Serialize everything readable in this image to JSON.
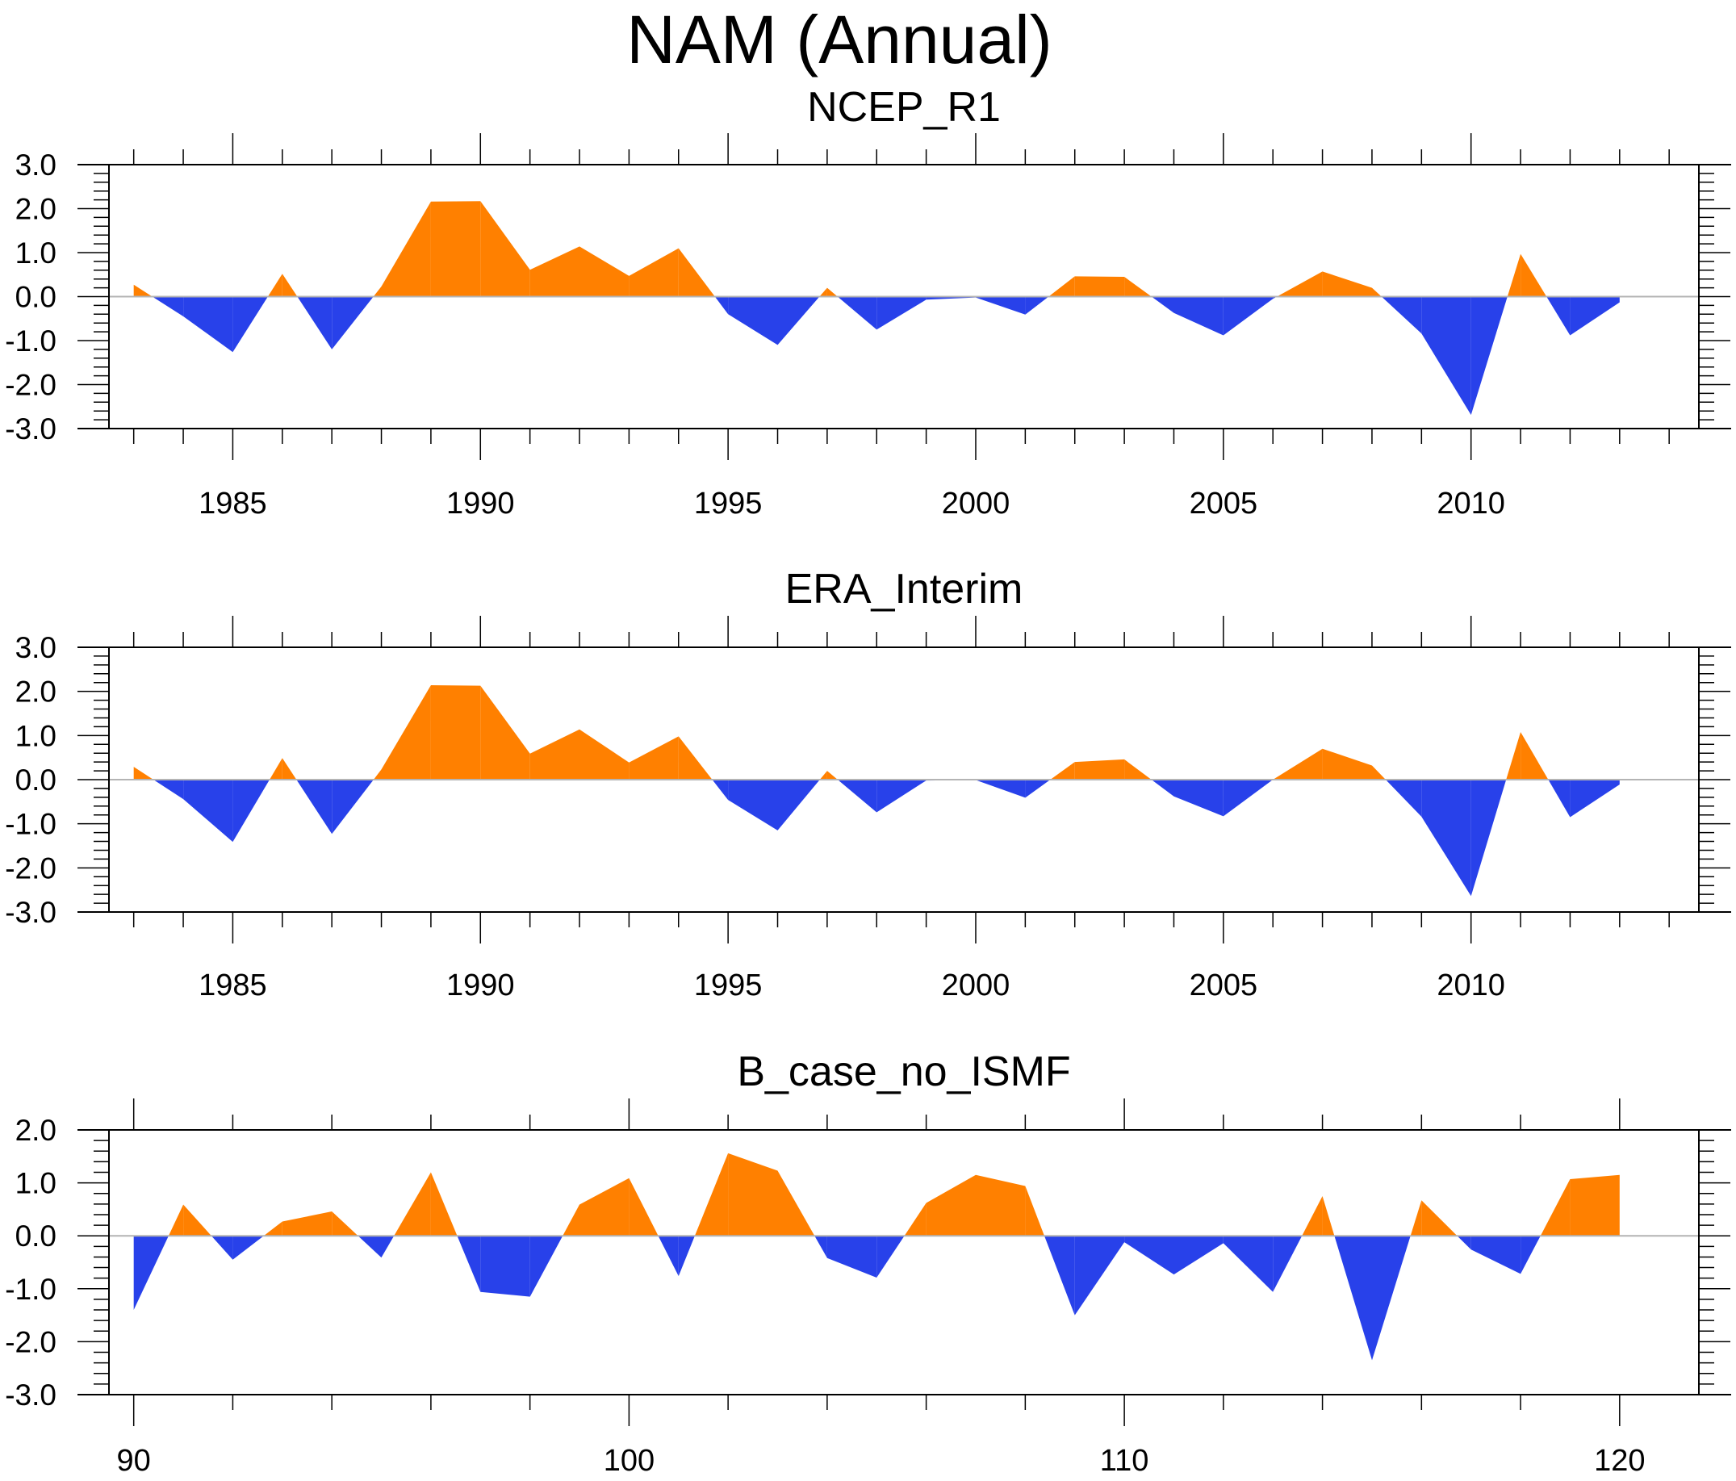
{
  "title": "NAM (Annual)",
  "colors": {
    "positive_fill": "#ff8000",
    "negative_fill": "#2841ea",
    "zero_line": "#b4b4b4",
    "axis": "#000000"
  },
  "chart_data": [
    {
      "type": "area",
      "title": "NCEP_R1",
      "xlabel": "",
      "ylabel": "",
      "xlim": [
        1982.5,
        2014.6
      ],
      "ylim": [
        -3.0,
        3.0
      ],
      "grid": false,
      "legend": "none",
      "x_major_ticks": [
        1985,
        1990,
        1995,
        2000,
        2005,
        2010
      ],
      "x_tick_labels": [
        "1985",
        "1990",
        "1995",
        "2000",
        "2005",
        "2010"
      ],
      "x_minor_ticks": [
        1983,
        1984,
        1985,
        1986,
        1987,
        1988,
        1989,
        1990,
        1991,
        1992,
        1993,
        1994,
        1995,
        1996,
        1997,
        1998,
        1999,
        2000,
        2001,
        2002,
        2003,
        2004,
        2005,
        2006,
        2007,
        2008,
        2009,
        2010,
        2011,
        2012,
        2013,
        2014
      ],
      "y_major_ticks": [
        3.0,
        2.0,
        1.0,
        0.0,
        -1.0,
        -2.0,
        -3.0
      ],
      "y_tick_labels": [
        "3.0",
        "2.0",
        "1.0",
        "0.0",
        "-1.0",
        "-2.0",
        "-3.0"
      ],
      "y_minor_step": 0.2,
      "reference_line": 0.0,
      "x": [
        1983,
        1984,
        1985,
        1986,
        1987,
        1988,
        1989,
        1990,
        1991,
        1992,
        1993,
        1994,
        1995,
        1996,
        1997,
        1998,
        1999,
        2000,
        2001,
        2002,
        2003,
        2004,
        2005,
        2006,
        2007,
        2008,
        2009,
        2010,
        2011,
        2012,
        2013
      ],
      "values": [
        0.27,
        -0.45,
        -1.26,
        0.52,
        -1.2,
        0.23,
        2.16,
        2.17,
        0.61,
        1.14,
        0.47,
        1.1,
        -0.4,
        -1.1,
        0.2,
        -0.75,
        -0.07,
        -0.02,
        -0.41,
        0.46,
        0.45,
        -0.37,
        -0.88,
        -0.05,
        0.57,
        0.2,
        -0.84,
        -2.69,
        0.97,
        -0.88,
        -0.13
      ]
    },
    {
      "type": "area",
      "title": "ERA_Interim",
      "xlabel": "",
      "ylabel": "",
      "xlim": [
        1982.5,
        2014.6
      ],
      "ylim": [
        -3.0,
        3.0
      ],
      "grid": false,
      "legend": "none",
      "x_major_ticks": [
        1985,
        1990,
        1995,
        2000,
        2005,
        2010
      ],
      "x_tick_labels": [
        "1985",
        "1990",
        "1995",
        "2000",
        "2005",
        "2010"
      ],
      "x_minor_ticks": [
        1983,
        1984,
        1985,
        1986,
        1987,
        1988,
        1989,
        1990,
        1991,
        1992,
        1993,
        1994,
        1995,
        1996,
        1997,
        1998,
        1999,
        2000,
        2001,
        2002,
        2003,
        2004,
        2005,
        2006,
        2007,
        2008,
        2009,
        2010,
        2011,
        2012,
        2013,
        2014
      ],
      "y_major_ticks": [
        3.0,
        2.0,
        1.0,
        0.0,
        -1.0,
        -2.0,
        -3.0
      ],
      "y_tick_labels": [
        "3.0",
        "2.0",
        "1.0",
        "0.0",
        "-1.0",
        "-2.0",
        "-3.0"
      ],
      "y_minor_step": 0.2,
      "reference_line": 0.0,
      "x": [
        1983,
        1984,
        1985,
        1986,
        1987,
        1988,
        1989,
        1990,
        1991,
        1992,
        1993,
        1994,
        1995,
        1996,
        1997,
        1998,
        1999,
        2000,
        2001,
        2002,
        2003,
        2004,
        2005,
        2006,
        2007,
        2008,
        2009,
        2010,
        2011,
        2012,
        2013
      ],
      "values": [
        0.29,
        -0.44,
        -1.41,
        0.49,
        -1.23,
        0.23,
        2.14,
        2.13,
        0.59,
        1.14,
        0.39,
        0.98,
        -0.46,
        -1.15,
        0.2,
        -0.74,
        -0.02,
        -0.01,
        -0.41,
        0.4,
        0.46,
        -0.38,
        -0.83,
        0.0,
        0.7,
        0.32,
        -0.84,
        -2.64,
        1.08,
        -0.85,
        -0.11
      ]
    },
    {
      "type": "area",
      "title": "B_case_no_ISMF",
      "xlabel": "",
      "ylabel": "",
      "xlim": [
        89.5,
        121.6
      ],
      "ylim": [
        -3.0,
        2.0
      ],
      "grid": false,
      "legend": "none",
      "x_major_ticks": [
        90,
        100,
        110,
        120
      ],
      "x_tick_labels": [
        "90",
        "100",
        "110",
        "120"
      ],
      "x_minor_ticks": [
        90,
        92,
        94,
        96,
        98,
        100,
        102,
        104,
        106,
        108,
        110,
        112,
        114,
        116,
        118,
        120
      ],
      "y_major_ticks": [
        2.0,
        1.0,
        0.0,
        -1.0,
        -2.0,
        -3.0
      ],
      "y_tick_labels": [
        "2.0",
        "1.0",
        "0.0",
        "-1.0",
        "-2.0",
        "-3.0"
      ],
      "y_minor_step": 0.2,
      "reference_line": 0.0,
      "x": [
        90,
        91,
        92,
        93,
        94,
        95,
        96,
        97,
        98,
        99,
        100,
        101,
        102,
        103,
        104,
        105,
        106,
        107,
        108,
        109,
        110,
        111,
        112,
        113,
        114,
        115,
        116,
        117,
        118,
        119,
        120
      ],
      "values": [
        -1.4,
        0.59,
        -0.45,
        0.27,
        0.46,
        -0.41,
        1.2,
        -1.06,
        -1.15,
        0.59,
        1.09,
        -0.76,
        1.56,
        1.23,
        -0.42,
        -0.79,
        0.62,
        1.15,
        0.94,
        -1.5,
        -0.12,
        -0.73,
        -0.14,
        -1.06,
        0.75,
        -2.35,
        0.67,
        -0.26,
        -0.72,
        1.07,
        1.15
      ]
    }
  ]
}
